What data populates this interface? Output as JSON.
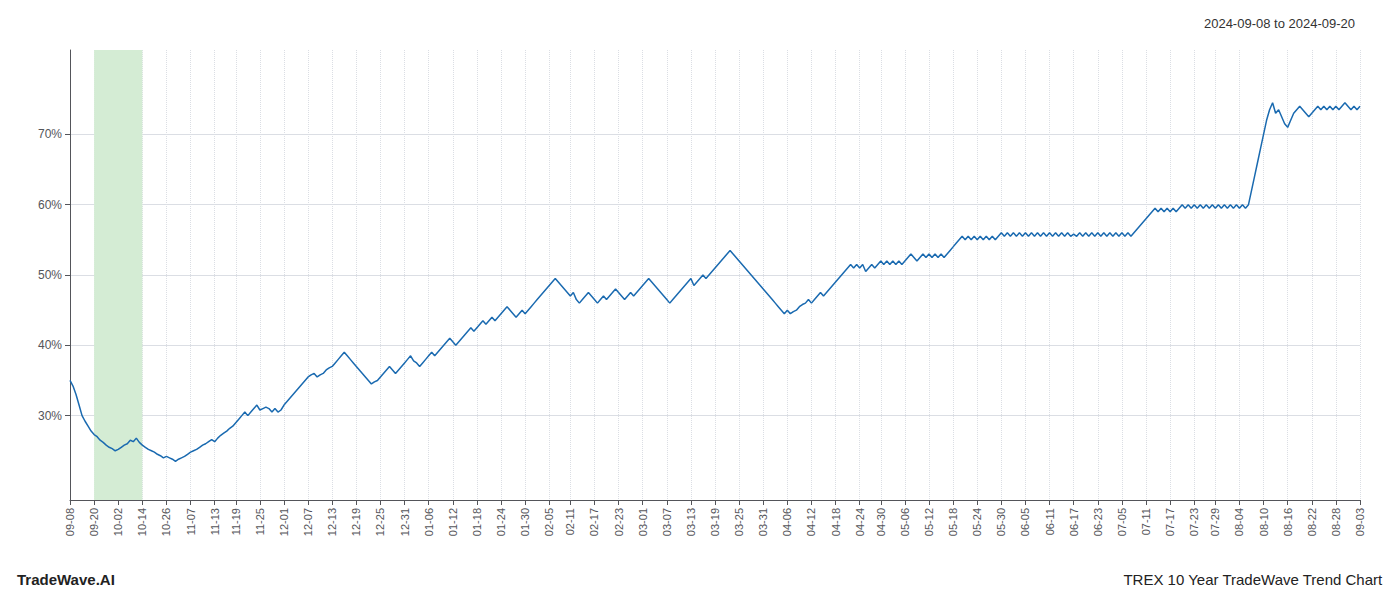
{
  "chart_data": {
    "type": "line",
    "title": "TREX 10 Year TradeWave Trend Chart",
    "subtitle": "2024-09-08 to 2024-09-20",
    "annotations": [
      "TradeWave.AI"
    ],
    "color": "#1a6ab0",
    "grid": true,
    "highlight": {
      "from": "09-20",
      "to": "10-14",
      "color": "#d4ecd4"
    },
    "ylim": [
      18,
      82
    ],
    "yticks": [
      {
        "value": 30,
        "label": "30%"
      },
      {
        "value": 40,
        "label": "40%"
      },
      {
        "value": 50,
        "label": "50%"
      },
      {
        "value": 60,
        "label": "60%"
      },
      {
        "value": 70,
        "label": "70%"
      }
    ],
    "categories": [
      "09-08",
      null,
      null,
      null,
      null,
      null,
      null,
      null,
      "09-20",
      null,
      null,
      null,
      null,
      null,
      null,
      null,
      "10-02",
      null,
      null,
      null,
      null,
      null,
      null,
      null,
      "10-14",
      null,
      null,
      null,
      null,
      null,
      null,
      null,
      "10-26",
      null,
      null,
      null,
      null,
      null,
      null,
      null,
      "11-07",
      null,
      null,
      null,
      null,
      null,
      null,
      null,
      "11-13",
      null,
      null,
      null,
      null,
      null,
      null,
      "11-19",
      null,
      null,
      null,
      null,
      null,
      null,
      null,
      "11-25",
      null,
      null,
      null,
      null,
      null,
      null,
      null,
      "12-01",
      null,
      null,
      null,
      null,
      null,
      null,
      null,
      "12-07",
      null,
      null,
      null,
      null,
      null,
      null,
      null,
      "12-13",
      null,
      null,
      null,
      null,
      null,
      null,
      null,
      "12-19",
      null,
      null,
      null,
      null,
      null,
      null,
      null,
      "12-25",
      null,
      null,
      null,
      null,
      null,
      null,
      null,
      "12-31",
      null,
      null,
      null,
      null,
      null,
      null,
      null,
      "01-06",
      null,
      null,
      null,
      null,
      null,
      null,
      null,
      "01-12",
      null,
      null,
      null,
      null,
      null,
      null,
      null,
      "01-18",
      null,
      null,
      null,
      null,
      null,
      null,
      null,
      "01-24",
      null,
      null,
      null,
      null,
      null,
      null,
      null,
      "01-30",
      null,
      null,
      null,
      null,
      null,
      null,
      null,
      "02-05",
      null,
      null,
      null,
      null,
      null,
      null,
      "02-11",
      null,
      null,
      null,
      null,
      null,
      null,
      null,
      "02-17",
      null,
      null,
      null,
      null,
      null,
      null,
      null,
      "02-23",
      null,
      null,
      null,
      null,
      null,
      null,
      null,
      "03-01",
      null,
      null,
      null,
      null,
      null,
      null,
      null,
      "03-07",
      null,
      null,
      null,
      null,
      null,
      null,
      null,
      "03-13",
      null,
      null,
      null,
      null,
      null,
      null,
      null,
      "03-19",
      null,
      null,
      null,
      null,
      null,
      null,
      null,
      "03-25",
      null,
      null,
      null,
      null,
      null,
      null,
      null,
      "03-31",
      null,
      null,
      null,
      null,
      null,
      null,
      null,
      "04-06",
      null,
      null,
      null,
      null,
      null,
      null,
      null,
      "04-12",
      null,
      null,
      null,
      null,
      null,
      null,
      null,
      "04-18",
      null,
      null,
      null,
      null,
      null,
      null,
      null,
      "04-24",
      null,
      null,
      null,
      null,
      null,
      null,
      "04-30",
      null,
      null,
      null,
      null,
      null,
      null,
      null,
      "05-06",
      null,
      null,
      null,
      null,
      null,
      null,
      null,
      "05-12",
      null,
      null,
      null,
      null,
      null,
      null,
      null,
      "05-18",
      null,
      null,
      null,
      null,
      null,
      null,
      null,
      "05-24",
      null,
      null,
      null,
      null,
      null,
      null,
      null,
      "05-30",
      null,
      null,
      null,
      null,
      null,
      null,
      null,
      "06-05",
      null,
      null,
      null,
      null,
      null,
      null,
      null,
      "06-11",
      null,
      null,
      null,
      null,
      null,
      null,
      null,
      "06-17",
      null,
      null,
      null,
      null,
      null,
      null,
      null,
      "06-23",
      null,
      null,
      null,
      null,
      null,
      null,
      null,
      "07-05",
      null,
      null,
      null,
      null,
      null,
      null,
      null,
      "07-11",
      null,
      null,
      null,
      null,
      null,
      null,
      null,
      "07-17",
      null,
      null,
      null,
      null,
      null,
      null,
      null,
      "07-23",
      null,
      null,
      null,
      null,
      null,
      null,
      "07-29",
      null,
      null,
      null,
      null,
      null,
      null,
      null,
      "08-04",
      null,
      null,
      null,
      null,
      null,
      null,
      null,
      "08-10",
      null,
      null,
      null,
      null,
      null,
      null,
      null,
      "08-16",
      null,
      null,
      null,
      null,
      null,
      null,
      null,
      "08-22",
      null,
      null,
      null,
      null,
      null,
      null,
      null,
      "08-28",
      null,
      null,
      null,
      null,
      null,
      null,
      null,
      "09-03"
    ],
    "values": [
      35.0,
      34.2,
      33.0,
      31.5,
      30.0,
      29.2,
      28.5,
      27.8,
      27.3,
      27.0,
      26.5,
      26.2,
      25.8,
      25.5,
      25.3,
      25.0,
      25.2,
      25.5,
      25.8,
      26.0,
      26.5,
      26.3,
      26.8,
      26.2,
      25.8,
      25.5,
      25.2,
      25.0,
      24.8,
      24.5,
      24.3,
      24.0,
      24.2,
      24.0,
      23.8,
      23.5,
      23.8,
      24.0,
      24.2,
      24.5,
      24.8,
      25.0,
      25.2,
      25.5,
      25.8,
      26.0,
      26.3,
      26.6,
      26.3,
      26.8,
      27.2,
      27.5,
      27.8,
      28.2,
      28.5,
      29.0,
      29.5,
      30.0,
      30.5,
      30.0,
      30.5,
      31.0,
      31.5,
      30.8,
      31.0,
      31.2,
      31.0,
      30.5,
      31.0,
      30.5,
      30.8,
      31.5,
      32.0,
      32.5,
      33.0,
      33.5,
      34.0,
      34.5,
      35.0,
      35.5,
      35.8,
      36.0,
      35.5,
      35.8,
      36.0,
      36.5,
      36.8,
      37.0,
      37.5,
      38.0,
      38.5,
      39.0,
      38.5,
      38.0,
      37.5,
      37.0,
      36.5,
      36.0,
      35.5,
      35.0,
      34.5,
      34.8,
      35.0,
      35.5,
      36.0,
      36.5,
      37.0,
      36.5,
      36.0,
      36.5,
      37.0,
      37.5,
      38.0,
      38.5,
      37.8,
      37.5,
      37.0,
      37.5,
      38.0,
      38.5,
      39.0,
      38.5,
      39.0,
      39.5,
      40.0,
      40.5,
      41.0,
      40.5,
      40.0,
      40.5,
      41.0,
      41.5,
      42.0,
      42.5,
      42.0,
      42.5,
      43.0,
      43.5,
      43.0,
      43.5,
      44.0,
      43.5,
      44.0,
      44.5,
      45.0,
      45.5,
      45.0,
      44.5,
      44.0,
      44.5,
      45.0,
      44.5,
      45.0,
      45.5,
      46.0,
      46.5,
      47.0,
      47.5,
      48.0,
      48.5,
      49.0,
      49.5,
      49.0,
      48.5,
      48.0,
      47.5,
      47.0,
      47.5,
      46.5,
      46.0,
      46.5,
      47.0,
      47.5,
      47.0,
      46.5,
      46.0,
      46.5,
      47.0,
      46.5,
      47.0,
      47.5,
      48.0,
      47.5,
      47.0,
      46.5,
      47.0,
      47.5,
      47.0,
      47.5,
      48.0,
      48.5,
      49.0,
      49.5,
      49.0,
      48.5,
      48.0,
      47.5,
      47.0,
      46.5,
      46.0,
      46.5,
      47.0,
      47.5,
      48.0,
      48.5,
      49.0,
      49.5,
      48.5,
      49.0,
      49.5,
      50.0,
      49.5,
      50.0,
      50.5,
      51.0,
      51.5,
      52.0,
      52.5,
      53.0,
      53.5,
      53.0,
      52.5,
      52.0,
      51.5,
      51.0,
      50.5,
      50.0,
      49.5,
      49.0,
      48.5,
      48.0,
      47.5,
      47.0,
      46.5,
      46.0,
      45.5,
      45.0,
      44.5,
      45.0,
      44.5,
      44.8,
      45.0,
      45.5,
      45.8,
      46.0,
      46.5,
      46.0,
      46.5,
      47.0,
      47.5,
      47.0,
      47.5,
      48.0,
      48.5,
      49.0,
      49.5,
      50.0,
      50.5,
      51.0,
      51.5,
      51.0,
      51.5,
      51.0,
      51.5,
      50.5,
      51.0,
      51.5,
      51.0,
      51.5,
      52.0,
      51.5,
      52.0,
      51.5,
      52.0,
      51.5,
      52.0,
      51.5,
      52.0,
      52.5,
      53.0,
      52.5,
      52.0,
      52.5,
      53.0,
      52.5,
      53.0,
      52.5,
      53.0,
      52.5,
      53.0,
      52.5,
      53.0,
      53.5,
      54.0,
      54.5,
      55.0,
      55.5,
      55.0,
      55.5,
      55.0,
      55.5,
      55.0,
      55.5,
      55.0,
      55.5,
      55.0,
      55.5,
      55.0,
      55.5,
      56.0,
      55.5,
      56.0,
      55.5,
      56.0,
      55.5,
      56.0,
      55.5,
      56.0,
      55.5,
      56.0,
      55.5,
      56.0,
      55.5,
      56.0,
      55.5,
      56.0,
      55.5,
      56.0,
      55.5,
      56.0,
      55.5,
      56.0,
      55.5,
      55.8,
      55.5,
      56.0,
      55.5,
      56.0,
      55.5,
      56.0,
      55.5,
      56.0,
      55.5,
      56.0,
      55.5,
      56.0,
      55.5,
      56.0,
      55.5,
      56.0,
      55.5,
      56.0,
      55.5,
      56.0,
      56.5,
      57.0,
      57.5,
      58.0,
      58.5,
      59.0,
      59.5,
      59.0,
      59.5,
      59.0,
      59.5,
      59.0,
      59.5,
      59.0,
      59.5,
      60.0,
      59.5,
      60.0,
      59.5,
      60.0,
      59.5,
      60.0,
      59.5,
      60.0,
      59.5,
      60.0,
      59.5,
      60.0,
      59.5,
      60.0,
      59.5,
      60.0,
      59.5,
      60.0,
      59.5,
      60.0,
      59.5,
      60.0,
      62.0,
      64.0,
      66.0,
      68.0,
      70.0,
      72.0,
      73.5,
      74.5,
      73.0,
      73.5,
      72.5,
      71.5,
      71.0,
      72.0,
      73.0,
      73.5,
      74.0,
      73.5,
      73.0,
      72.5,
      73.0,
      73.5,
      74.0,
      73.5,
      74.0,
      73.5,
      74.0,
      73.5,
      74.0,
      73.5,
      74.0,
      74.5,
      74.0,
      73.5,
      74.0,
      73.5,
      74.0
    ]
  }
}
